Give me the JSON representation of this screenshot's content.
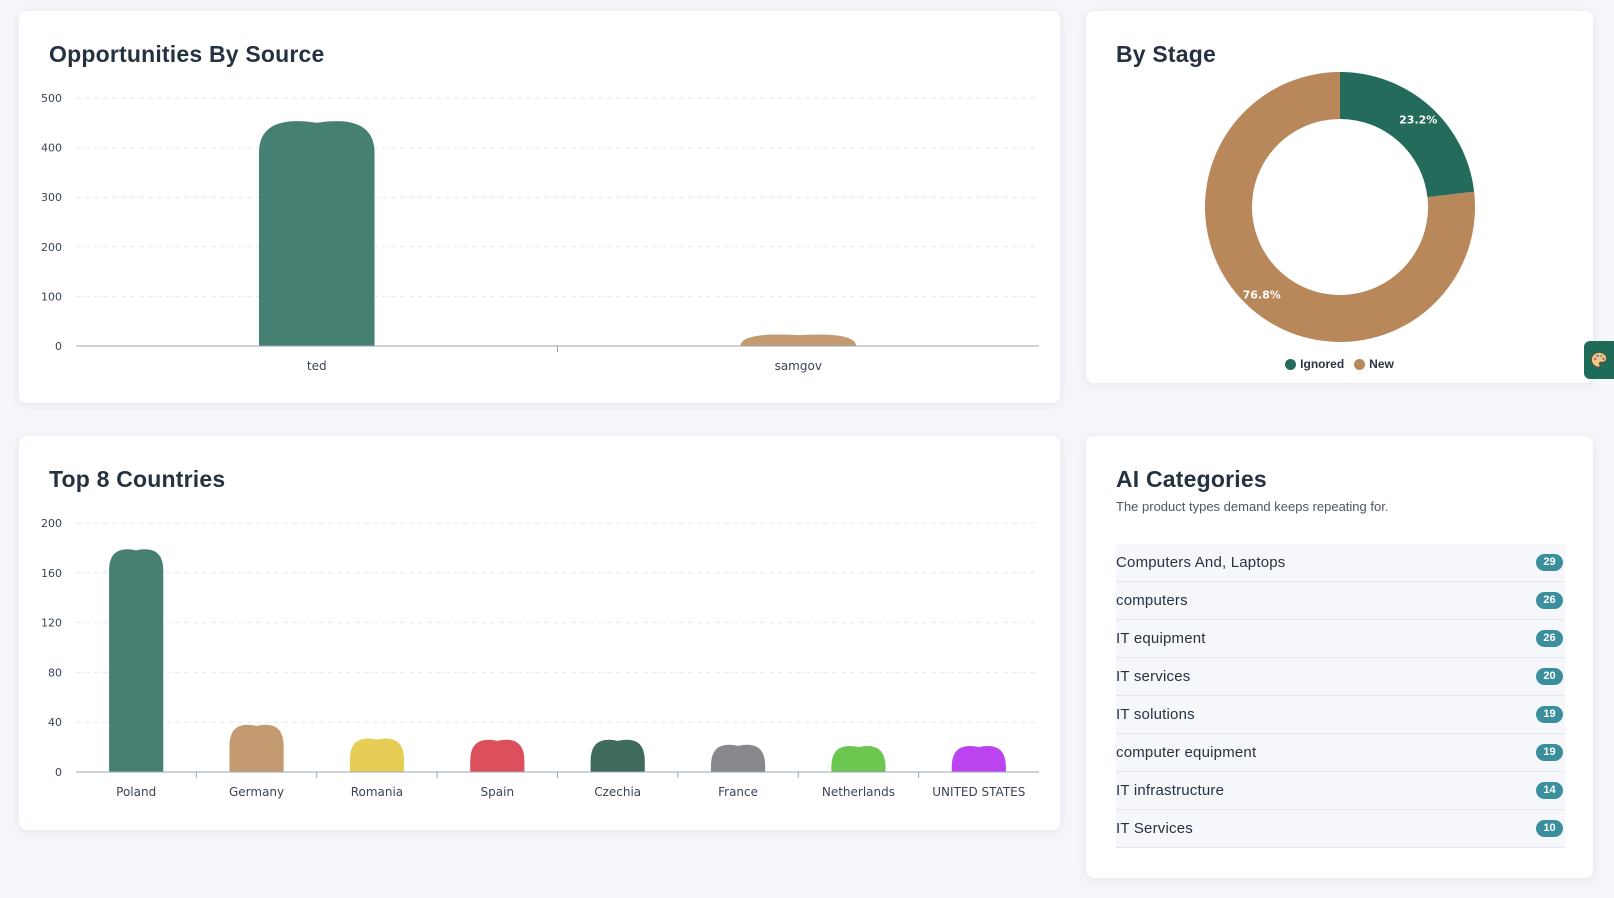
{
  "source_card": {
    "title": "Opportunities By Source",
    "chart_data": {
      "type": "bar",
      "categories": [
        "ted",
        "samgov"
      ],
      "values": [
        450,
        22
      ],
      "colors": [
        "#458073",
        "#c49a70"
      ],
      "title": "Opportunities By Source",
      "ylim": [
        0,
        500
      ],
      "yticks": [
        0,
        100,
        200,
        300,
        400,
        500
      ],
      "grid": true
    }
  },
  "stage_card": {
    "title": "By Stage",
    "chart_data": {
      "type": "pie",
      "categories": [
        "Ignored",
        "New"
      ],
      "values": [
        23.2,
        76.8
      ],
      "labels": [
        "23.2%",
        "76.8%"
      ],
      "colors": [
        "#246b5c",
        "#b8875a"
      ],
      "title": "By Stage",
      "legend": "bottom"
    }
  },
  "countries_card": {
    "title": "Top 8 Countries",
    "chart_data": {
      "type": "bar",
      "categories": [
        "Poland",
        "Germany",
        "Romania",
        "Spain",
        "Czechia",
        "France",
        "Netherlands",
        "UNITED STATES"
      ],
      "values": [
        178,
        37,
        26,
        25,
        25,
        21,
        20,
        20
      ],
      "colors": [
        "#458073",
        "#c49a70",
        "#e6cd55",
        "#dc4f5d",
        "#3f6b5e",
        "#86888b",
        "#6cc751",
        "#bb44f0"
      ],
      "title": "Top 8 Countries",
      "ylim": [
        0,
        200
      ],
      "yticks": [
        0,
        40,
        80,
        120,
        160,
        200
      ],
      "grid": true
    }
  },
  "ai_card": {
    "title": "AI Categories",
    "subtitle": "The product types demand keeps repeating for.",
    "items": [
      {
        "label": "Computers And, Laptops",
        "count": "29"
      },
      {
        "label": "computers",
        "count": "26"
      },
      {
        "label": "IT equipment",
        "count": "26"
      },
      {
        "label": "IT services",
        "count": "20"
      },
      {
        "label": "IT solutions",
        "count": "19"
      },
      {
        "label": "computer equipment",
        "count": "19"
      },
      {
        "label": "IT infrastructure",
        "count": "14"
      },
      {
        "label": "IT Services",
        "count": "10"
      }
    ]
  },
  "side_tab": {
    "icon": "palette-icon"
  }
}
